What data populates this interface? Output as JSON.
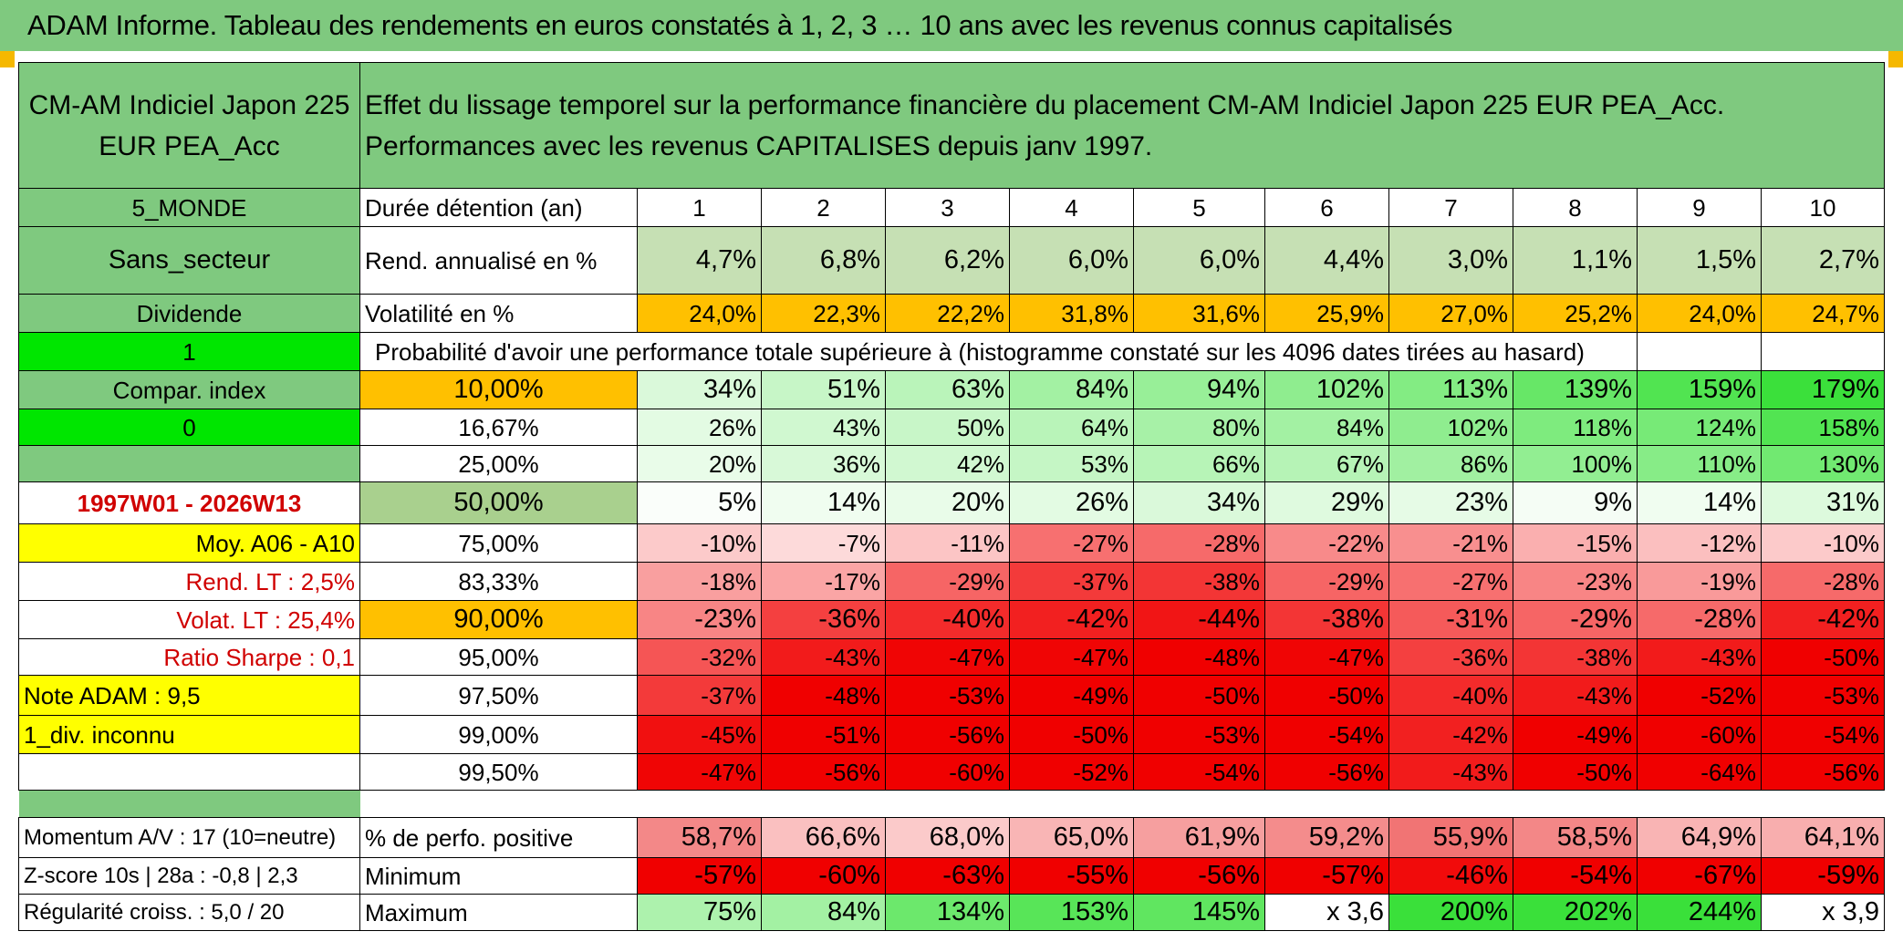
{
  "title": "ADAM Informe. Tableau des rendements en euros constatés à 1, 2, 3 … 10 ans avec les revenus connus capitalisés",
  "fund_name": "CM-AM Indiciel Japon 225 EUR PEA_Acc",
  "description": "Effet du lissage temporel sur la performance financière du placement CM-AM Indiciel Japon 225 EUR PEA_Acc. Performances avec les revenus CAPITALISES depuis janv 1997.",
  "left": {
    "zone": "5_MONDE",
    "sector": "Sans_secteur",
    "dividend": "Dividende",
    "dividend_value": "1",
    "compar_index": "Compar. index",
    "compar_value": "0",
    "period": "1997W01 - 2026W13",
    "avg": "Moy. A06 - A10",
    "rend_lt": "Rend. LT :   2,5%",
    "volat_lt": "Volat. LT :   25,4%",
    "sharpe": "Ratio Sharpe :   0,1",
    "note": "Note ADAM : 9,5",
    "div_unknown": "1_div. inconnu",
    "momentum": "Momentum A/V : 17 (10=neutre)",
    "zscore": "Z-score 10s | 28a : -0,8 | 2,3",
    "regularity": "Régularité croiss. : 5,0 / 20"
  },
  "headers": {
    "duration": "Durée détention (an)",
    "rend": "Rend. annualisé en %",
    "vol": "Volatilité en %",
    "prob": "Probabilité d'avoir une performance totale supérieure à (histogramme constaté sur les 4096 dates tirées au hasard)",
    "pos": "% de perfo. positive",
    "min": "Minimum",
    "max": "Maximum"
  },
  "years": [
    "1",
    "2",
    "3",
    "4",
    "5",
    "6",
    "7",
    "8",
    "9",
    "10"
  ],
  "rend": [
    "4,7%",
    "6,8%",
    "6,2%",
    "6,0%",
    "6,0%",
    "4,4%",
    "3,0%",
    "1,1%",
    "1,5%",
    "2,7%"
  ],
  "vol": [
    "24,0%",
    "22,3%",
    "22,2%",
    "31,8%",
    "31,6%",
    "25,9%",
    "27,0%",
    "25,2%",
    "24,0%",
    "24,7%"
  ],
  "percentiles": [
    {
      "label": "10,00%",
      "values": [
        "34%",
        "51%",
        "63%",
        "84%",
        "94%",
        "102%",
        "113%",
        "139%",
        "159%",
        "179%"
      ]
    },
    {
      "label": "16,67%",
      "values": [
        "26%",
        "43%",
        "50%",
        "64%",
        "80%",
        "84%",
        "102%",
        "118%",
        "124%",
        "158%"
      ]
    },
    {
      "label": "25,00%",
      "values": [
        "20%",
        "36%",
        "42%",
        "53%",
        "66%",
        "67%",
        "86%",
        "100%",
        "110%",
        "130%"
      ]
    },
    {
      "label": "50,00%",
      "values": [
        "5%",
        "14%",
        "20%",
        "26%",
        "34%",
        "29%",
        "23%",
        "9%",
        "14%",
        "31%"
      ]
    },
    {
      "label": "75,00%",
      "values": [
        "-10%",
        "-7%",
        "-11%",
        "-27%",
        "-28%",
        "-22%",
        "-21%",
        "-15%",
        "-12%",
        "-10%"
      ]
    },
    {
      "label": "83,33%",
      "values": [
        "-18%",
        "-17%",
        "-29%",
        "-37%",
        "-38%",
        "-29%",
        "-27%",
        "-23%",
        "-19%",
        "-28%"
      ]
    },
    {
      "label": "90,00%",
      "values": [
        "-23%",
        "-36%",
        "-40%",
        "-42%",
        "-44%",
        "-38%",
        "-31%",
        "-29%",
        "-28%",
        "-42%"
      ]
    },
    {
      "label": "95,00%",
      "values": [
        "-32%",
        "-43%",
        "-47%",
        "-47%",
        "-48%",
        "-47%",
        "-36%",
        "-38%",
        "-43%",
        "-50%"
      ]
    },
    {
      "label": "97,50%",
      "values": [
        "-37%",
        "-48%",
        "-53%",
        "-49%",
        "-50%",
        "-50%",
        "-40%",
        "-43%",
        "-52%",
        "-53%"
      ]
    },
    {
      "label": "99,00%",
      "values": [
        "-45%",
        "-51%",
        "-56%",
        "-50%",
        "-53%",
        "-54%",
        "-42%",
        "-49%",
        "-60%",
        "-54%"
      ]
    },
    {
      "label": "99,50%",
      "values": [
        "-47%",
        "-56%",
        "-60%",
        "-52%",
        "-54%",
        "-56%",
        "-43%",
        "-50%",
        "-64%",
        "-56%"
      ]
    }
  ],
  "positive": [
    "58,7%",
    "66,6%",
    "68,0%",
    "65,0%",
    "61,9%",
    "59,2%",
    "55,9%",
    "58,5%",
    "64,9%",
    "64,1%"
  ],
  "minimum": [
    "-57%",
    "-60%",
    "-63%",
    "-55%",
    "-56%",
    "-57%",
    "-46%",
    "-54%",
    "-67%",
    "-59%"
  ],
  "maximum": [
    "75%",
    "84%",
    "134%",
    "153%",
    "145%",
    "x 3,6",
    "200%",
    "202%",
    "244%",
    "x 3,9"
  ],
  "colors": {
    "header_green": "#7fc97f",
    "bright_green": "#00e600",
    "yellow": "#ffff00",
    "orange": "#ffc000",
    "red_text": "#d00000"
  }
}
